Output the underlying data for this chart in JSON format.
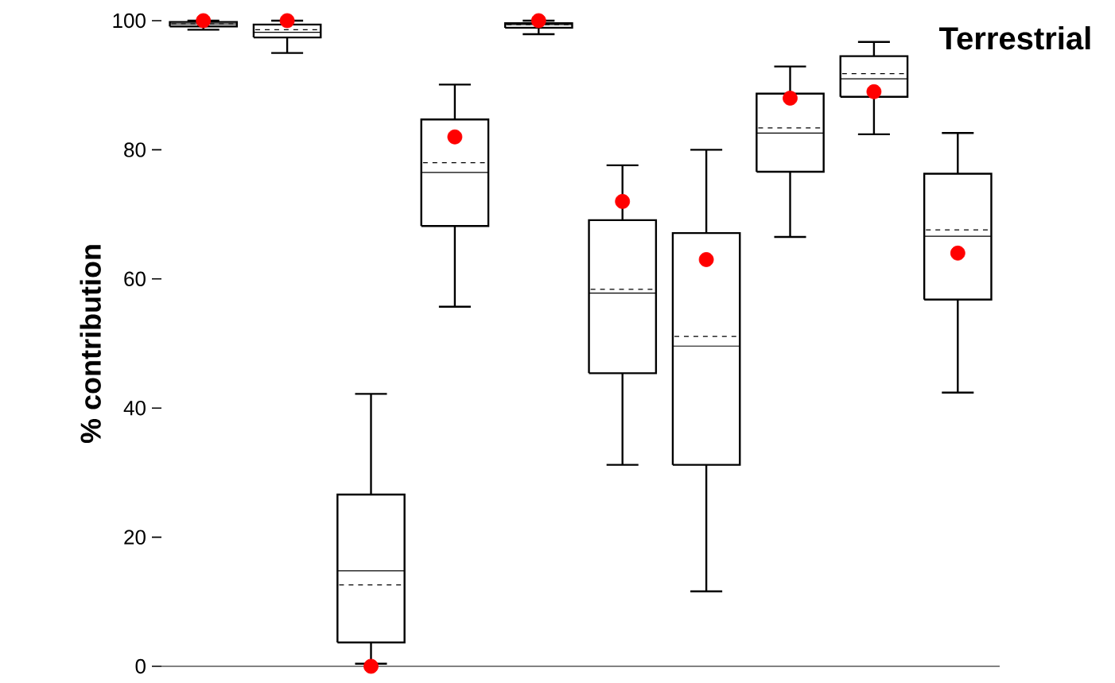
{
  "chart_data": {
    "type": "box",
    "title": "Terrestrial",
    "ylabel": "% contribution",
    "categories": [
      null,
      null,
      null,
      null,
      null,
      null,
      null,
      null,
      null,
      null
    ],
    "ylim": [
      0,
      100
    ],
    "yticks": [
      0,
      20,
      40,
      60,
      80,
      100
    ],
    "grid": false,
    "boxes": [
      {
        "low": 98.6,
        "q1": 99.1,
        "median": 99.5,
        "q3": 99.8,
        "high": 100,
        "mean": 99.5
      },
      {
        "low": 95,
        "q1": 97.4,
        "median": 98.2,
        "q3": 99.4,
        "high": 100,
        "mean": 98.6
      },
      {
        "low": 0.4,
        "q1": 3.7,
        "median": 14.8,
        "q3": 26.6,
        "high": 42.2,
        "mean": 12.6
      },
      {
        "low": 55.7,
        "q1": 68.2,
        "median": 76.5,
        "q3": 84.7,
        "high": 90.1,
        "mean": 78
      },
      {
        "low": 97.9,
        "q1": 98.9,
        "median": 99.4,
        "q3": 99.6,
        "high": 100,
        "mean": 99.4
      },
      {
        "low": 31.2,
        "q1": 45.4,
        "median": 57.8,
        "q3": 69.1,
        "high": 77.6,
        "mean": 58.4
      },
      {
        "low": 11.6,
        "q1": 31.2,
        "median": 49.6,
        "q3": 67.1,
        "high": 80,
        "mean": 51.1
      },
      {
        "low": 66.5,
        "q1": 76.6,
        "median": 82.6,
        "q3": 88.7,
        "high": 92.9,
        "mean": 83.4
      },
      {
        "low": 82.4,
        "q1": 88.2,
        "median": 91,
        "q3": 94.5,
        "high": 96.7,
        "mean": 91.8
      },
      {
        "low": 42.4,
        "q1": 56.8,
        "median": 66.6,
        "q3": 76.3,
        "high": 82.6,
        "mean": 67.6
      }
    ],
    "series": [
      {
        "type": "scatter",
        "color": "#ff0000",
        "values": [
          100,
          100,
          0,
          82,
          100,
          72,
          63,
          88,
          89,
          64
        ]
      }
    ]
  }
}
